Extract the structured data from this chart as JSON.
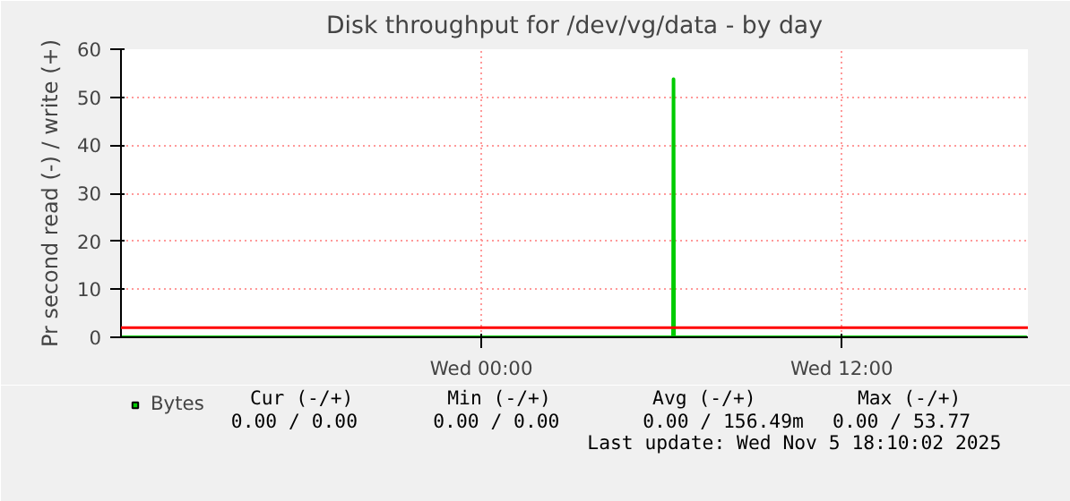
{
  "chart_data": {
    "type": "line",
    "title": "Disk throughput for /dev/vg/data - by day",
    "ylabel": "Pr second read (-) / write (+)",
    "x": [
      "2025-11-04T12:00",
      "2025-11-05T06:23",
      "2025-11-05T06:24",
      "2025-11-05T06:25",
      "2025-11-05T18:10"
    ],
    "series": [
      {
        "name": "Bytes",
        "color": "#00cc00",
        "values": [
          0,
          0,
          53.77,
          0,
          0
        ]
      }
    ],
    "xlim": [
      "2025-11-04T12:00",
      "2025-11-05T18:12"
    ],
    "xticks": [
      {
        "value": "2025-11-05T00:00",
        "label": "Wed 00:00"
      },
      {
        "value": "2025-11-05T12:00",
        "label": "Wed 12:00"
      }
    ],
    "ylim": [
      0,
      60
    ],
    "yticks": [
      0,
      10,
      20,
      30,
      40,
      50,
      60
    ],
    "ref_lines": [
      {
        "axis": "y",
        "value": 2,
        "label": null,
        "color": "#ff0000"
      }
    ],
    "grid": true,
    "legend": "bottom left",
    "marker": "none",
    "line_style": "solid",
    "annotations": [
      "Cur (-/+)",
      "Min (-/+)",
      "Avg (-/+)",
      "Max (-/+)",
      "0.00 /     0.00",
      "0.00 /     0.00",
      "0.00 /  156.49m",
      "0.00 /    53.77",
      "Last update: Wed Nov  5 18:10:02 2025"
    ]
  }
}
